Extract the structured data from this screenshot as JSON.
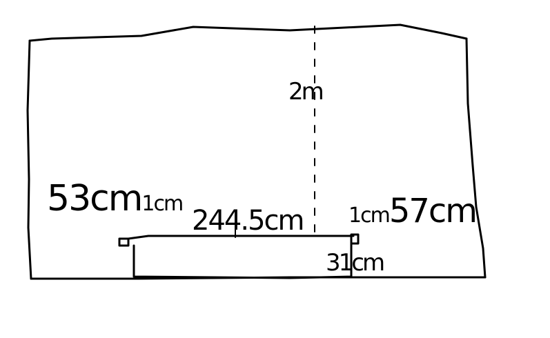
{
  "labels": {
    "height": "2m",
    "left_gap_big": "53cm",
    "left_gap_small": "1cm",
    "width": "244.5cm",
    "right_gap_small": "1cm",
    "right_gap_big": "57cm",
    "depth": "31cm"
  },
  "colors": {
    "ink": "#000000",
    "background": "#ffffff"
  }
}
